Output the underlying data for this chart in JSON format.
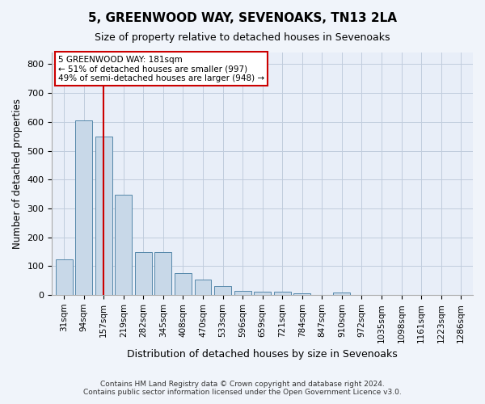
{
  "title": "5, GREENWOOD WAY, SEVENOAKS, TN13 2LA",
  "subtitle": "Size of property relative to detached houses in Sevenoaks",
  "xlabel": "Distribution of detached houses by size in Sevenoaks",
  "ylabel": "Number of detached properties",
  "bar_values": [
    125,
    605,
    550,
    348,
    148,
    148,
    75,
    55,
    32,
    15,
    12,
    12,
    6,
    0,
    8,
    0,
    0,
    0,
    0,
    0,
    0
  ],
  "categories": [
    "31sqm",
    "94sqm",
    "157sqm",
    "219sqm",
    "282sqm",
    "345sqm",
    "408sqm",
    "470sqm",
    "533sqm",
    "596sqm",
    "659sqm",
    "721sqm",
    "784sqm",
    "847sqm",
    "910sqm",
    "972sqm",
    "1035sqm",
    "1098sqm",
    "1161sqm",
    "1223sqm",
    "1286sqm"
  ],
  "bar_color": "#c8d8e8",
  "bar_edge_color": "#5588aa",
  "red_line_x": 2,
  "annotation_text": "5 GREENWOOD WAY: 181sqm\n← 51% of detached houses are smaller (997)\n49% of semi-detached houses are larger (948) →",
  "annotation_box_color": "#ffffff",
  "annotation_box_edge": "#cc0000",
  "red_line_color": "#cc0000",
  "ylim": [
    0,
    840
  ],
  "yticks": [
    0,
    100,
    200,
    300,
    400,
    500,
    600,
    700,
    800
  ],
  "grid_color": "#c0ccdd",
  "footer_line1": "Contains HM Land Registry data © Crown copyright and database right 2024.",
  "footer_line2": "Contains public sector information licensed under the Open Government Licence v3.0.",
  "bg_color": "#f0f4fa",
  "plot_bg_color": "#e8eef8"
}
